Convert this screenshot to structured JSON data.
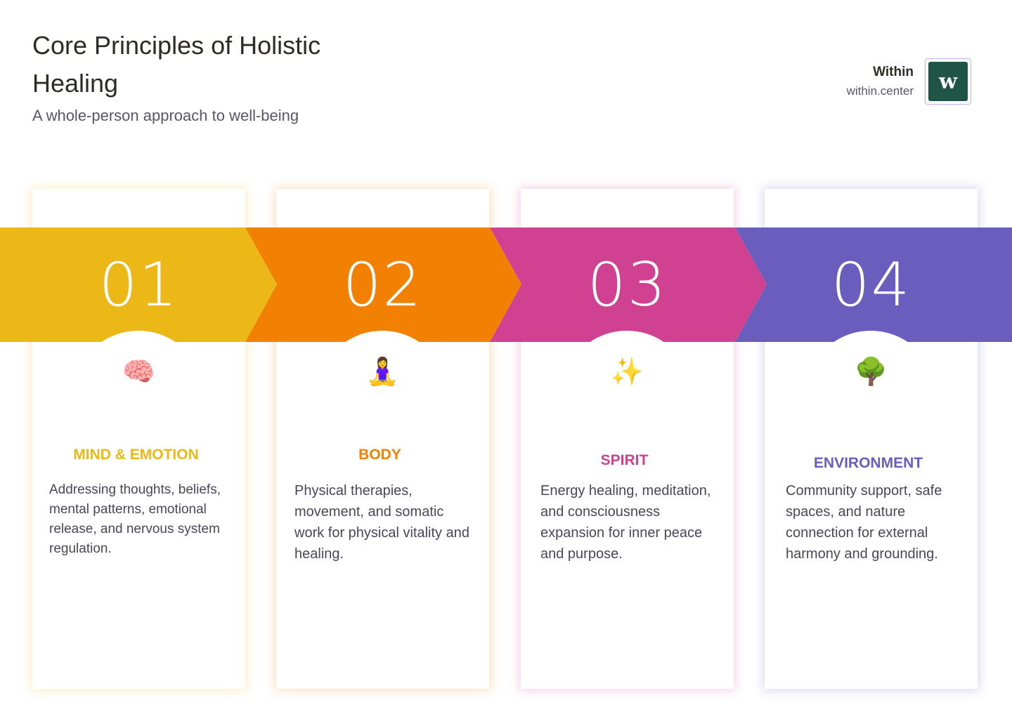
{
  "header": {
    "title": "Core Principles of Holistic Healing",
    "subtitle": "A whole-person approach to well-being"
  },
  "brand": {
    "name": "Within",
    "url": "within.center",
    "logo_letter": "w",
    "logo_color": "#1f5446"
  },
  "steps": [
    {
      "number": "01",
      "icon": "brain-icon",
      "emoji": "🧠",
      "title": "MIND & EMOTION",
      "description": "Addressing thoughts, beliefs, mental patterns, emotional release, and nervous system regulation.",
      "color": "#ECB817"
    },
    {
      "number": "02",
      "icon": "person-in-lotus-position-icon",
      "emoji": "🧘‍♀️",
      "title": "BODY",
      "description": "Physical therapies, movement, and somatic work for physical vitality and healing.",
      "color": "#F28002"
    },
    {
      "number": "03",
      "icon": "sparkles-icon",
      "emoji": "✨",
      "title": "SPIRIT",
      "description": "Energy healing, meditation, and consciousness expansion for inner peace and purpose.",
      "color": "#D04291"
    },
    {
      "number": "04",
      "icon": "tree-icon",
      "emoji": "🌳",
      "title": "ENVIRONMENT",
      "description": "Community support, safe spaces, and nature connection for external harmony and grounding.",
      "color": "#6A5DBE"
    }
  ]
}
